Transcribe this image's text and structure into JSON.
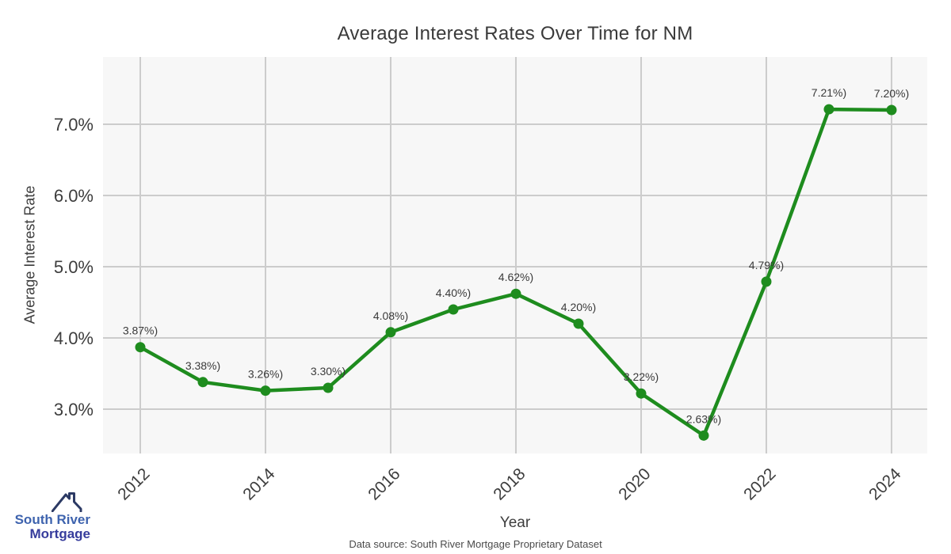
{
  "title": "Average Interest Rates Over Time for NM",
  "chart_data": {
    "type": "line",
    "title": "Average Interest Rates Over Time for NM",
    "xlabel": "Year",
    "ylabel": "Average Interest Rate",
    "x": [
      2012,
      2013,
      2014,
      2015,
      2016,
      2017,
      2018,
      2019,
      2020,
      2021,
      2022,
      2023,
      2024
    ],
    "values": [
      3.87,
      3.38,
      3.26,
      3.3,
      4.08,
      4.4,
      4.62,
      4.2,
      3.22,
      2.63,
      4.79,
      7.21,
      7.2
    ],
    "point_labels": [
      "3.87%)",
      "3.38%)",
      "3.26%)",
      "3.30%)",
      "4.08%)",
      "4.40%)",
      "4.62%)",
      "4.20%)",
      "3.22%)",
      "2.63%)",
      "4.79%)",
      "7.21%)",
      "7.20%)"
    ],
    "x_ticks": [
      2012,
      2014,
      2016,
      2018,
      2020,
      2022,
      2024
    ],
    "y_ticks": [
      {
        "v": 3.0,
        "label": "3.0%"
      },
      {
        "v": 4.0,
        "label": "4.0%"
      },
      {
        "v": 5.0,
        "label": "5.0%"
      },
      {
        "v": 6.0,
        "label": "6.0%"
      },
      {
        "v": 7.0,
        "label": "7.0%"
      }
    ],
    "xlim": [
      2011.405,
      2024.57
    ],
    "ylim": [
      2.378,
      7.944
    ],
    "grid": true,
    "legend": false,
    "line_color": "#1e8c1e",
    "marker_color": "#1e8c1e",
    "plot_bg": "#f7f7f7",
    "grid_color": "#cccccc",
    "tick_color": "#3d3d3d",
    "label_color": "#3a3a3a"
  },
  "footer": {
    "source": "Data source: South River Mortgage Proprietary Dataset"
  },
  "logo": {
    "line1": "South River",
    "line2": "Mortgage",
    "line1_color": "#3e63ae",
    "line2_color": "#363c9c",
    "icon_color": "#2c3a64"
  }
}
